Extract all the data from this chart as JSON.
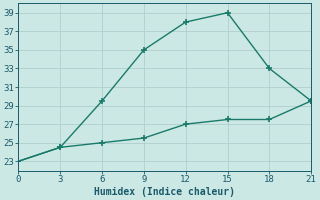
{
  "line1_x": [
    0,
    3,
    6,
    9,
    12,
    15,
    18,
    21
  ],
  "line1_y": [
    23,
    24.5,
    29.5,
    35,
    38,
    39,
    33,
    29.5
  ],
  "line2_x": [
    0,
    3,
    6,
    9,
    12,
    15,
    18,
    21
  ],
  "line2_y": [
    23,
    24.5,
    25,
    25.5,
    27,
    27.5,
    27.5,
    29.5
  ],
  "line_color": "#1a7a6a",
  "marker": "+",
  "xlabel": "Humidex (Indice chaleur)",
  "xlim": [
    0,
    21
  ],
  "ylim": [
    22,
    40
  ],
  "xticks": [
    0,
    3,
    6,
    9,
    12,
    15,
    18,
    21
  ],
  "yticks": [
    23,
    25,
    27,
    29,
    31,
    33,
    35,
    37,
    39
  ],
  "bg_color": "#cce8e4",
  "grid_color": "#b0cecc",
  "font_color": "#1a5a6a",
  "xlabel_fontsize": 7,
  "tick_fontsize": 6.5,
  "linewidth": 1.0,
  "markersize": 4,
  "markeredgewidth": 1.2
}
